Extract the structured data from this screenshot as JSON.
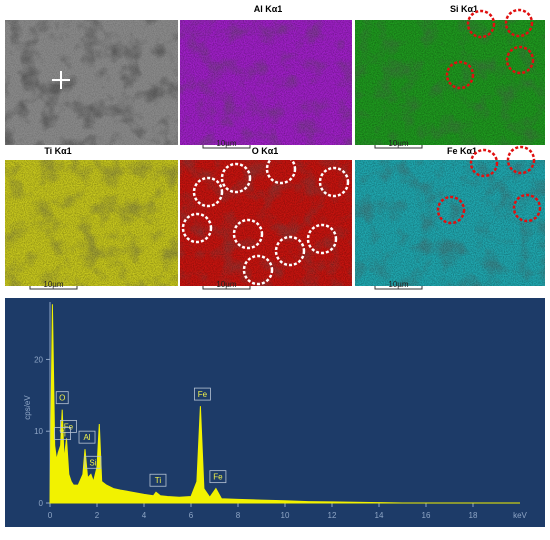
{
  "maps": [
    {
      "label": "Al Kα1",
      "scale": "10µm",
      "color": "#a020c8"
    },
    {
      "label": "Si Kα1",
      "scale": "10µm",
      "color": "#1f9a1f"
    },
    {
      "label": "Ti Kα1",
      "scale": "10µm",
      "color": "#c8c81e"
    },
    {
      "label": "O Kα1",
      "scale": "10µm",
      "color": "#c8140f"
    },
    {
      "label": "Fe Kα1",
      "scale": "10µm",
      "color": "#20a8b0"
    }
  ],
  "chart_data": {
    "type": "area",
    "y_label": "cps/eV",
    "x_unit": "keV",
    "color": "#f2f200",
    "x": [
      0,
      0.1,
      0.2,
      0.28,
      0.35,
      0.45,
      0.52,
      0.6,
      0.7,
      0.8,
      0.9,
      1.0,
      1.2,
      1.4,
      1.49,
      1.6,
      1.74,
      1.85,
      2.0,
      2.1,
      2.2,
      2.4,
      2.7,
      3.0,
      3.5,
      4.0,
      4.4,
      4.51,
      4.7,
      5.0,
      5.5,
      6.0,
      6.25,
      6.4,
      6.55,
      6.8,
      7.06,
      7.3,
      8.0,
      9.0,
      10.0,
      11.0,
      12.0,
      13.0,
      14.0,
      15,
      20
    ],
    "values": [
      0,
      27.7,
      8,
      6,
      7,
      8,
      13,
      6,
      9,
      4,
      3,
      2.5,
      2.5,
      4,
      7.5,
      3.5,
      4,
      3,
      5,
      11,
      3,
      2.5,
      2,
      1.8,
      1.5,
      1.2,
      1,
      1.5,
      1,
      0.9,
      0.8,
      0.9,
      3,
      13.5,
      2,
      0.8,
      2,
      0.6,
      0.5,
      0.4,
      0.3,
      0.2,
      0.15,
      0.1,
      0.05,
      0,
      0
    ],
    "peaks": [
      {
        "label": "O",
        "x": 0.52
      },
      {
        "label": "Fe",
        "x": 0.7
      },
      {
        "label": "Ti",
        "x": 0.45
      },
      {
        "label": "Al",
        "x": 1.49
      },
      {
        "label": "Si",
        "x": 1.74
      },
      {
        "label": "Ti",
        "x": 4.51
      },
      {
        "label": "Fe",
        "x": 6.4
      },
      {
        "label": "Fe",
        "x": 7.06
      }
    ],
    "xlim": [
      0,
      20
    ],
    "ylim": [
      0,
      28
    ],
    "xticks": [
      0,
      2,
      4,
      6,
      8,
      10,
      12,
      14,
      16,
      18
    ],
    "yticks": [
      0,
      10,
      20
    ]
  }
}
